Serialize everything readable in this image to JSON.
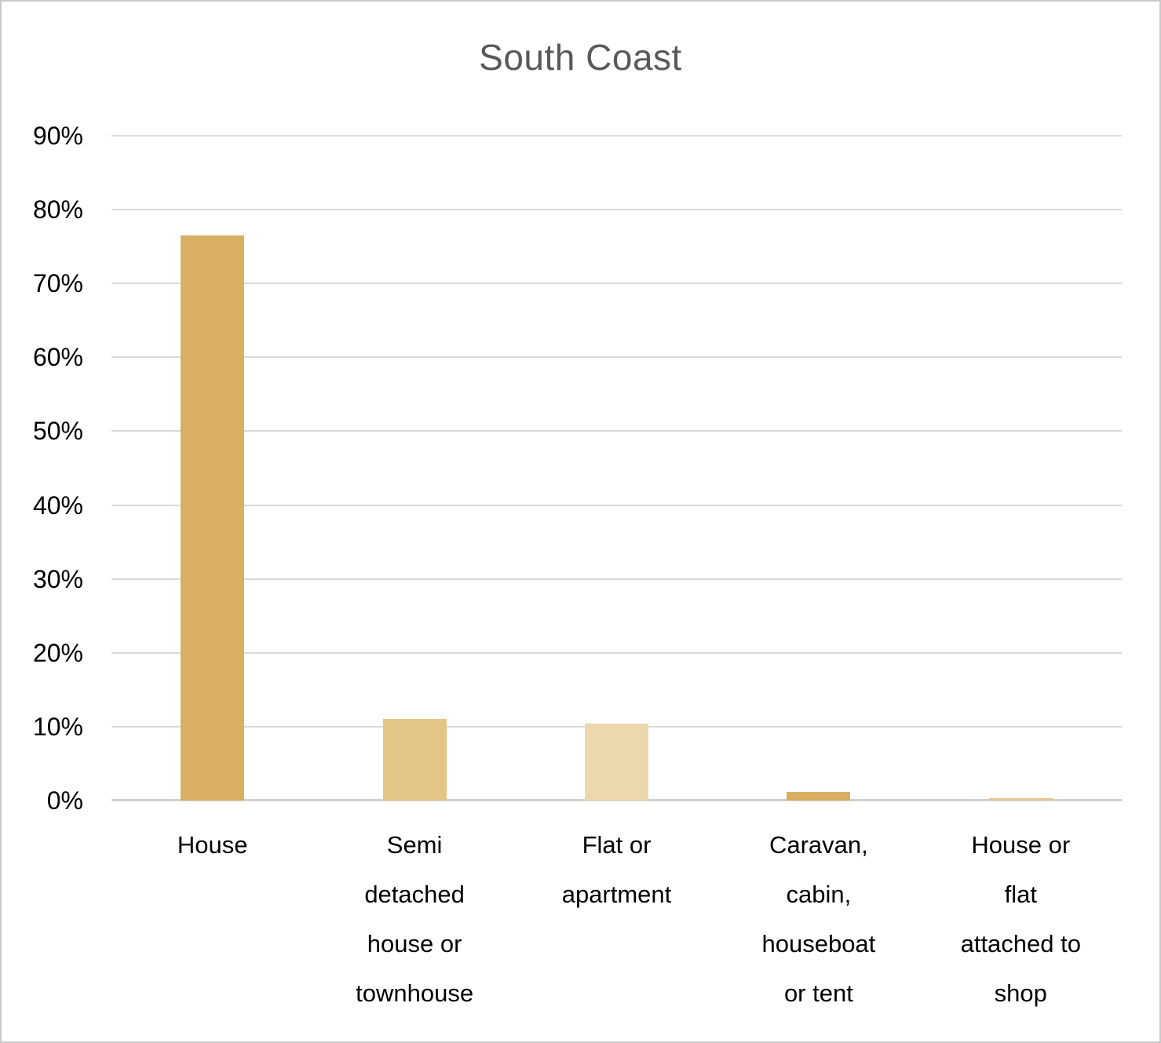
{
  "chart_data": {
    "type": "bar",
    "title": "South Coast",
    "categories": [
      "House",
      "Semi detached house or townhouse",
      "Flat or apartment",
      "Caravan, cabin, houseboat or tent",
      "House or flat attached to shop"
    ],
    "category_lines": [
      [
        "House"
      ],
      [
        "Semi",
        "detached",
        "house or",
        "townhouse"
      ],
      [
        "Flat or",
        "apartment"
      ],
      [
        "Caravan,",
        "cabin,",
        "houseboat",
        "or tent"
      ],
      [
        "House or",
        "flat",
        "attached to",
        "shop"
      ]
    ],
    "values": [
      76.5,
      11.1,
      10.4,
      1.2,
      0.3
    ],
    "bar_colors": [
      "#D9AF63",
      "#E3C585",
      "#ECD8AD",
      "#D9AF63",
      "#E4C98F"
    ],
    "xlabel": "",
    "ylabel": "",
    "ylim": [
      0,
      90
    ],
    "ytick_step": 10,
    "ytick_labels": [
      "0%",
      "10%",
      "20%",
      "30%",
      "40%",
      "50%",
      "60%",
      "70%",
      "80%",
      "90%"
    ],
    "grid": true,
    "legend": "none",
    "gridline_color": "#D9D9D9",
    "axis_line_color": "#D0D0D0",
    "title_color": "#595959"
  }
}
